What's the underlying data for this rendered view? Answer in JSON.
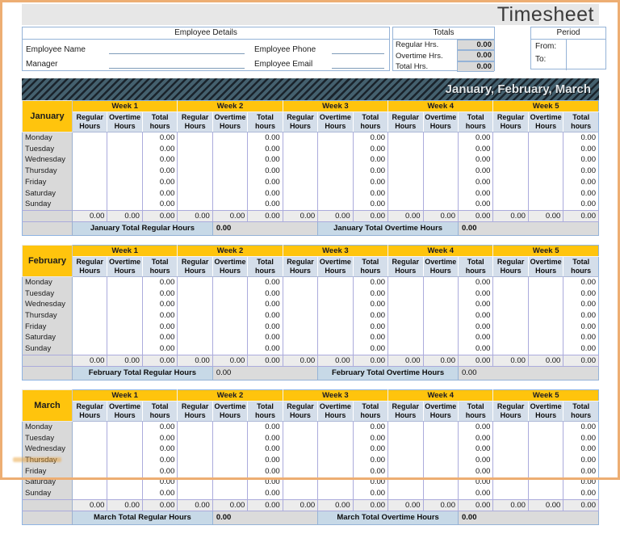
{
  "header": {
    "title": "Timesheet",
    "quarter": "January, February, March"
  },
  "employee": {
    "header": "Employee Details",
    "rows": [
      {
        "left_label": "Employee Name",
        "left_value": "",
        "right_label": "Employee Phone",
        "right_value": ""
      },
      {
        "left_label": "Manager",
        "left_value": "",
        "right_label": "Employee Email",
        "right_value": ""
      }
    ]
  },
  "totals": {
    "header": "Totals",
    "rows": [
      {
        "label": "Regular Hrs.",
        "value": "0.00"
      },
      {
        "label": "Overtime Hrs.",
        "value": "0.00"
      },
      {
        "label": "Total Hrs.",
        "value": "0.00"
      }
    ]
  },
  "period": {
    "header": "Period",
    "rows": [
      {
        "label": "From:",
        "value": ""
      },
      {
        "label": "To:",
        "value": ""
      }
    ]
  },
  "grid": {
    "weeks": [
      "Week 1",
      "Week 2",
      "Week 3",
      "Week 4",
      "Week 5"
    ],
    "columns": [
      "Regular Hours",
      "Overtime Hours",
      "Total hours"
    ],
    "days": [
      "Monday",
      "Tuesday",
      "Wednesday",
      "Thursday",
      "Friday",
      "Saturday",
      "Sunday"
    ],
    "empty_cell": "",
    "zero": "0.00"
  },
  "months": [
    {
      "name": "January",
      "total_regular_label": "January Total Regular Hours",
      "total_regular_value": "0.00",
      "total_overtime_label": "January Total Overtime Hours",
      "total_overtime_value": "0.00"
    },
    {
      "name": "February",
      "total_regular_label": "February Total Regular Hours",
      "total_regular_value": "0.00",
      "total_overtime_label": "February Total Overtime Hours",
      "total_overtime_value": "0.00"
    },
    {
      "name": "March",
      "total_regular_label": "March Total Regular Hours",
      "total_regular_value": "0.00",
      "total_overtime_label": "March Total Overtime Hours",
      "total_overtime_value": "0.00"
    }
  ],
  "colors": {
    "accent_yellow": "#FFC40D",
    "banner_dark": "#1A232B",
    "banner_slate": "#44606E",
    "grid_line": "#ABABDC",
    "panel_border": "#95B3D7",
    "value_cell_bg": "#D9D9D9",
    "total_label_bg": "#C7D9E7",
    "page_frame": "#EDAE73"
  }
}
